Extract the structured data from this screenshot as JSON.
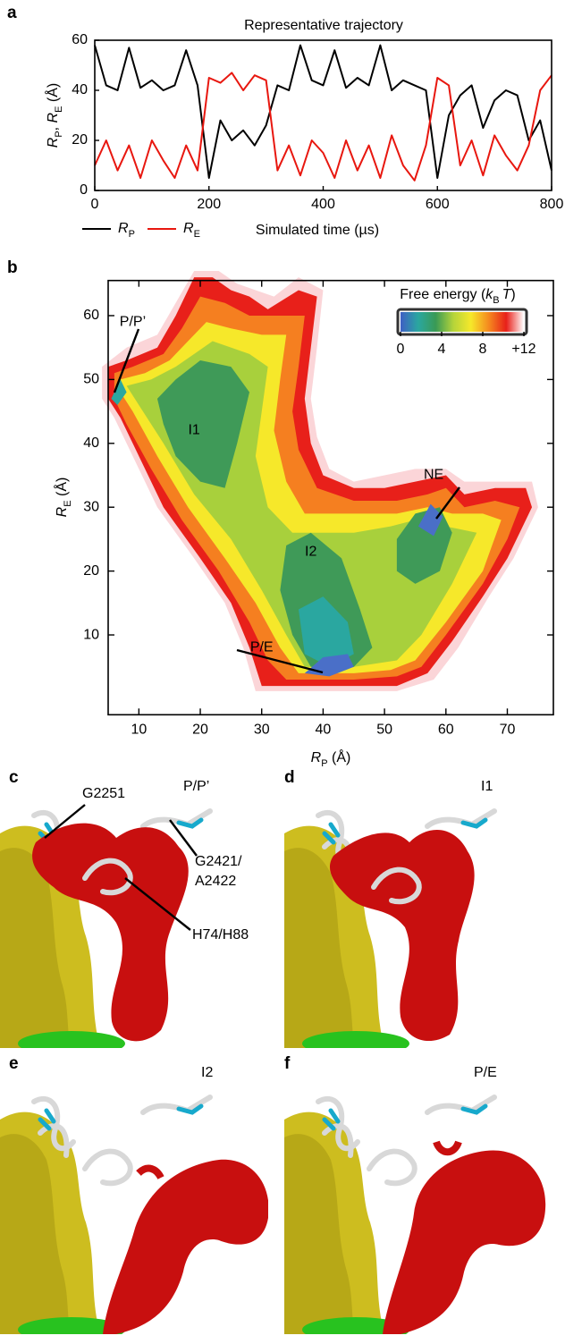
{
  "chart_data": [
    {
      "type": "line",
      "panel_label": "a",
      "title": "Representative trajectory",
      "xlabel": "Simulated time (µs)",
      "ylabel": [
        "R",
        "P",
        ", ",
        "R",
        "E",
        " (Å)"
      ],
      "x": [
        0,
        20,
        40,
        60,
        80,
        100,
        120,
        140,
        160,
        180,
        200,
        220,
        240,
        260,
        280,
        300,
        320,
        340,
        360,
        380,
        400,
        420,
        440,
        460,
        480,
        500,
        520,
        540,
        560,
        580,
        600,
        620,
        640,
        660,
        680,
        700,
        720,
        740,
        760,
        780,
        800
      ],
      "series": [
        {
          "name": [
            "R",
            "P"
          ],
          "color": "#000000",
          "values": [
            58,
            42,
            40,
            57,
            41,
            44,
            40,
            42,
            56,
            42,
            5,
            28,
            20,
            24,
            18,
            26,
            42,
            40,
            58,
            44,
            42,
            56,
            41,
            45,
            42,
            58,
            40,
            44,
            42,
            40,
            5,
            30,
            38,
            42,
            25,
            36,
            40,
            38,
            20,
            28,
            8
          ]
        },
        {
          "name": [
            "R",
            "E"
          ],
          "color": "#e8170f",
          "values": [
            10,
            20,
            8,
            18,
            5,
            20,
            12,
            5,
            18,
            8,
            45,
            43,
            47,
            40,
            46,
            44,
            8,
            18,
            6,
            20,
            15,
            5,
            20,
            8,
            18,
            5,
            22,
            10,
            4,
            18,
            45,
            42,
            10,
            20,
            6,
            22,
            14,
            8,
            18,
            40,
            46
          ]
        }
      ],
      "xlim": [
        0,
        800
      ],
      "xticks": [
        0,
        200,
        400,
        600,
        800
      ],
      "ylim": [
        0,
        60
      ],
      "yticks": [
        0,
        20,
        40,
        60
      ]
    },
    {
      "type": "heatmap",
      "panel_label": "b",
      "xlabel": [
        "R",
        "P",
        " (Å)"
      ],
      "ylabel": [
        "R",
        "E",
        " (Å)"
      ],
      "xlim": [
        5,
        77.5
      ],
      "xticks": [
        10,
        20,
        30,
        40,
        50,
        60,
        70
      ],
      "ylim": [
        -2.5,
        65.5
      ],
      "yticks": [
        10,
        20,
        30,
        40,
        50,
        60
      ],
      "colorbar": {
        "title": [
          "Free energy (",
          "k",
          "B",
          "T",
          ")"
        ],
        "lim": [
          0,
          12
        ],
        "ticks": [
          0,
          4,
          8,
          {
            "value": 12,
            "label": "+12"
          }
        ],
        "colors": [
          "#3f5fc4",
          "#2aa7a0",
          "#3a9a55",
          "#b5d43a",
          "#f6e82a",
          "#f58a1f",
          "#e8201a",
          "#ffffff"
        ]
      },
      "annotations": [
        {
          "text": "P/P’",
          "x": 9,
          "y": 59
        },
        {
          "text": "I1",
          "x": 19,
          "y": 42
        },
        {
          "text": "NE",
          "x": 58,
          "y": 35
        },
        {
          "text": "I2",
          "x": 38,
          "y": 23
        },
        {
          "text": "P/E",
          "x": 30,
          "y": 8
        }
      ]
    }
  ],
  "structures": [
    {
      "label": "c",
      "state": "P/P’",
      "residues": [
        "G2251",
        "G2421/",
        "A2422",
        "H74/H88"
      ]
    },
    {
      "label": "d",
      "state": "I1"
    },
    {
      "label": "e",
      "state": "I2"
    },
    {
      "label": "f",
      "state": "P/E"
    }
  ]
}
